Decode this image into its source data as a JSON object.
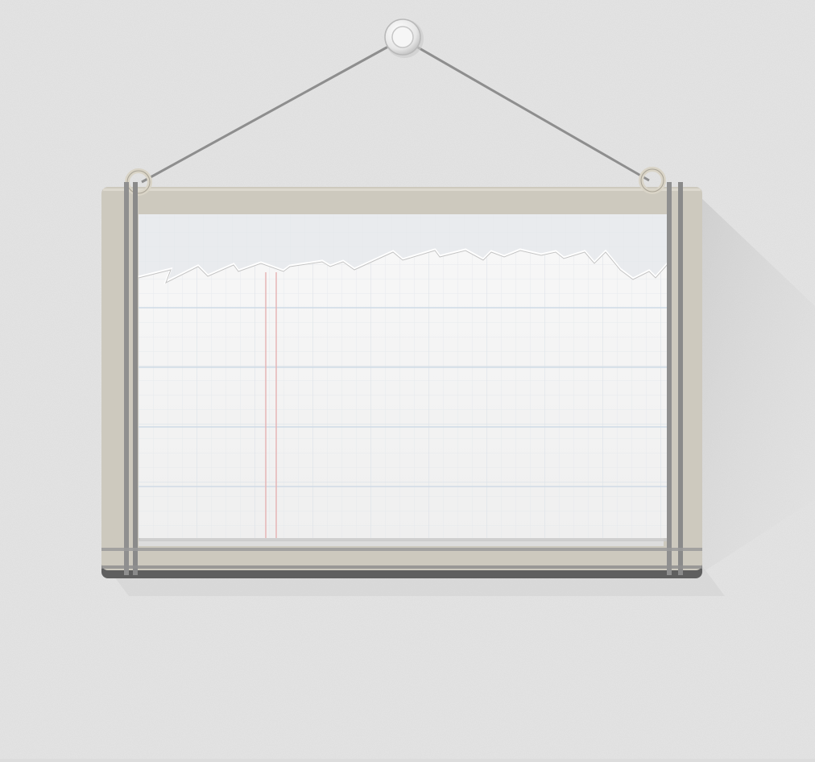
{
  "scene": {
    "wall_color": "#dcdcdc",
    "frame_color": "#cfcbc0",
    "paper_color": "#f4f4f4",
    "grid_color": "#dfe6ec",
    "margin_line_color": "#e8b8b8",
    "pin_color": "#f2f2f2",
    "string_color": "#9a9a9a",
    "band_color": "#8e8e8e"
  }
}
